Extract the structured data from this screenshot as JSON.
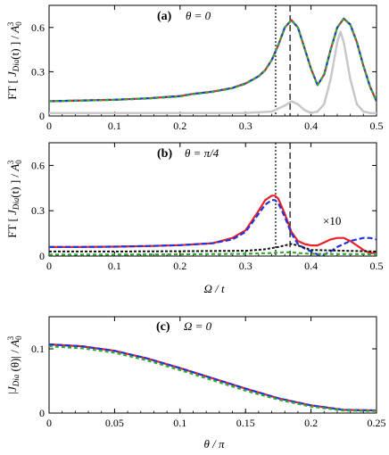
{
  "colors": {
    "red": "#e8202a",
    "green": "#33aa33",
    "blue": "#2233dd",
    "black": "#111111",
    "gray": "#c8c8c8"
  },
  "xlabel_ab": "Ω / t",
  "xlabel_c": "θ / π",
  "chart_data": [
    {
      "id": "a",
      "type": "line",
      "panel_label": "(a)",
      "annotation": "θ = 0",
      "ylabel": "FT [ J_Dia(t) ] / A_0^3",
      "xlim": [
        0,
        0.5
      ],
      "ylim": [
        0,
        0.75
      ],
      "xticks": [
        "0",
        "0.1",
        "0.2",
        "0.3",
        "0.4",
        "0.5"
      ],
      "yticks": [
        "0",
        "0.3",
        "0.6"
      ],
      "vlines": [
        {
          "x": 0.346,
          "style": "dotted"
        },
        {
          "x": 0.368,
          "style": "dashed"
        }
      ],
      "series": [
        {
          "color": "red",
          "dash": "",
          "width": 2.2,
          "x": [
            0,
            0.05,
            0.1,
            0.15,
            0.2,
            0.22,
            0.25,
            0.28,
            0.3,
            0.32,
            0.33,
            0.34,
            0.35,
            0.36,
            0.37,
            0.38,
            0.39,
            0.4,
            0.41,
            0.42,
            0.43,
            0.44,
            0.45,
            0.46,
            0.47,
            0.48,
            0.49,
            0.5
          ],
          "y": [
            0.1,
            0.105,
            0.11,
            0.12,
            0.135,
            0.15,
            0.165,
            0.19,
            0.22,
            0.27,
            0.31,
            0.38,
            0.48,
            0.6,
            0.65,
            0.6,
            0.46,
            0.32,
            0.21,
            0.28,
            0.45,
            0.6,
            0.66,
            0.62,
            0.5,
            0.34,
            0.2,
            0.1
          ]
        },
        {
          "color": "blue",
          "dash": "6,3",
          "width": 2.2,
          "x": [
            0,
            0.05,
            0.1,
            0.15,
            0.2,
            0.22,
            0.25,
            0.28,
            0.3,
            0.32,
            0.33,
            0.34,
            0.35,
            0.36,
            0.37,
            0.38,
            0.39,
            0.4,
            0.41,
            0.42,
            0.43,
            0.44,
            0.45,
            0.46,
            0.47,
            0.48,
            0.49,
            0.5
          ],
          "y": [
            0.1,
            0.105,
            0.11,
            0.12,
            0.135,
            0.15,
            0.165,
            0.19,
            0.22,
            0.27,
            0.31,
            0.38,
            0.48,
            0.6,
            0.65,
            0.6,
            0.46,
            0.32,
            0.21,
            0.28,
            0.45,
            0.6,
            0.66,
            0.62,
            0.5,
            0.34,
            0.2,
            0.1
          ]
        },
        {
          "color": "green",
          "dash": "4,3",
          "width": 2.2,
          "x": [
            0,
            0.05,
            0.1,
            0.15,
            0.2,
            0.22,
            0.25,
            0.28,
            0.3,
            0.32,
            0.33,
            0.34,
            0.35,
            0.36,
            0.37,
            0.38,
            0.39,
            0.4,
            0.41,
            0.42,
            0.43,
            0.44,
            0.45,
            0.46,
            0.47,
            0.48,
            0.49,
            0.5
          ],
          "y": [
            0.1,
            0.104,
            0.109,
            0.118,
            0.132,
            0.148,
            0.162,
            0.188,
            0.218,
            0.268,
            0.31,
            0.38,
            0.48,
            0.6,
            0.65,
            0.6,
            0.46,
            0.32,
            0.21,
            0.28,
            0.45,
            0.6,
            0.66,
            0.62,
            0.5,
            0.34,
            0.2,
            0.1
          ]
        },
        {
          "color": "gray",
          "dash": "",
          "width": 2.5,
          "x": [
            0,
            0.2,
            0.3,
            0.34,
            0.36,
            0.37,
            0.38,
            0.39,
            0.4,
            0.41,
            0.42,
            0.43,
            0.44,
            0.445,
            0.45,
            0.46,
            0.47,
            0.48,
            0.49,
            0.5
          ],
          "y": [
            0.02,
            0.02,
            0.02,
            0.03,
            0.07,
            0.1,
            0.08,
            0.04,
            0.02,
            0.03,
            0.08,
            0.25,
            0.5,
            0.57,
            0.5,
            0.25,
            0.08,
            0.03,
            0.02,
            0.02
          ]
        }
      ]
    },
    {
      "id": "b",
      "type": "line",
      "panel_label": "(b)",
      "annotation": "θ = π/4",
      "annotation2": "×10",
      "ylabel": "FT [ J_Dia(t) ] / A_0^3",
      "xlim": [
        0,
        0.5
      ],
      "ylim": [
        0,
        0.75
      ],
      "xticks": [
        "0",
        "0.1",
        "0.2",
        "0.3",
        "0.4",
        "0.5"
      ],
      "yticks": [
        "0",
        "0.3",
        "0.6"
      ],
      "vlines": [
        {
          "x": 0.346,
          "style": "dotted"
        },
        {
          "x": 0.368,
          "style": "dashed"
        }
      ],
      "series": [
        {
          "color": "red",
          "dash": "",
          "width": 2.2,
          "x": [
            0,
            0.05,
            0.1,
            0.15,
            0.2,
            0.25,
            0.28,
            0.3,
            0.32,
            0.33,
            0.34,
            0.345,
            0.35,
            0.36,
            0.37,
            0.38,
            0.39,
            0.4,
            0.41,
            0.42,
            0.43,
            0.44,
            0.45,
            0.46,
            0.47,
            0.48,
            0.49,
            0.5
          ],
          "y": [
            0.06,
            0.06,
            0.062,
            0.066,
            0.072,
            0.085,
            0.12,
            0.17,
            0.3,
            0.37,
            0.4,
            0.4,
            0.38,
            0.28,
            0.16,
            0.1,
            0.08,
            0.07,
            0.07,
            0.09,
            0.11,
            0.12,
            0.12,
            0.1,
            0.07,
            0.04,
            0.02,
            0.02
          ]
        },
        {
          "color": "blue",
          "dash": "6,3",
          "width": 2.2,
          "x": [
            0,
            0.05,
            0.1,
            0.15,
            0.2,
            0.25,
            0.28,
            0.3,
            0.32,
            0.33,
            0.34,
            0.345,
            0.35,
            0.36,
            0.37,
            0.38,
            0.39,
            0.4,
            0.41,
            0.42,
            0.43,
            0.44,
            0.45,
            0.46,
            0.47,
            0.48,
            0.49,
            0.5
          ],
          "y": [
            0.06,
            0.06,
            0.062,
            0.066,
            0.072,
            0.085,
            0.11,
            0.16,
            0.28,
            0.34,
            0.37,
            0.37,
            0.35,
            0.26,
            0.15,
            0.08,
            0.05,
            0.03,
            0.01,
            0.01,
            0.03,
            0.06,
            0.08,
            0.1,
            0.11,
            0.12,
            0.12,
            0.11
          ]
        },
        {
          "color": "green",
          "dash": "4,3",
          "width": 2.2,
          "x": [
            0,
            0.1,
            0.2,
            0.3,
            0.34,
            0.36,
            0.37,
            0.38,
            0.4,
            0.5
          ],
          "y": [
            0.01,
            0.01,
            0.012,
            0.015,
            0.02,
            0.025,
            0.025,
            0.02,
            0.015,
            0.012
          ]
        },
        {
          "color": "black",
          "dash": "3,2",
          "width": 2,
          "x": [
            0,
            0.1,
            0.2,
            0.3,
            0.33,
            0.35,
            0.36,
            0.37,
            0.38,
            0.39,
            0.4,
            0.5
          ],
          "y": [
            0.03,
            0.03,
            0.032,
            0.035,
            0.045,
            0.06,
            0.07,
            0.08,
            0.07,
            0.055,
            0.04,
            0.03
          ]
        }
      ]
    },
    {
      "id": "c",
      "type": "line",
      "panel_label": "(c)",
      "annotation": "Ω = 0",
      "ylabel": "|J_Dia (θ)| / A_0^3",
      "xlim": [
        0,
        0.25
      ],
      "ylim": [
        0,
        0.15
      ],
      "xticks": [
        "0",
        "0.05",
        "0.1",
        "0.15",
        "0.2",
        "0.25"
      ],
      "yticks": [
        "0",
        "0.1"
      ],
      "vlines": [],
      "series": [
        {
          "color": "red",
          "dash": "",
          "width": 2.2,
          "x": [
            0,
            0.025,
            0.05,
            0.075,
            0.1,
            0.125,
            0.15,
            0.175,
            0.2,
            0.225,
            0.25
          ],
          "y": [
            0.107,
            0.104,
            0.097,
            0.085,
            0.07,
            0.054,
            0.038,
            0.023,
            0.012,
            0.005,
            0.004
          ]
        },
        {
          "color": "blue",
          "dash": "6,3",
          "width": 2.2,
          "x": [
            0,
            0.025,
            0.05,
            0.075,
            0.1,
            0.125,
            0.15,
            0.175,
            0.2,
            0.225,
            0.25
          ],
          "y": [
            0.107,
            0.104,
            0.097,
            0.085,
            0.07,
            0.054,
            0.038,
            0.023,
            0.012,
            0.005,
            0.004
          ]
        },
        {
          "color": "green",
          "dash": "4,3",
          "width": 2.2,
          "x": [
            0,
            0.025,
            0.05,
            0.075,
            0.1,
            0.125,
            0.15,
            0.175,
            0.2,
            0.225,
            0.25
          ],
          "y": [
            0.104,
            0.101,
            0.094,
            0.082,
            0.067,
            0.051,
            0.035,
            0.021,
            0.01,
            0.004,
            0.003
          ]
        }
      ]
    }
  ]
}
